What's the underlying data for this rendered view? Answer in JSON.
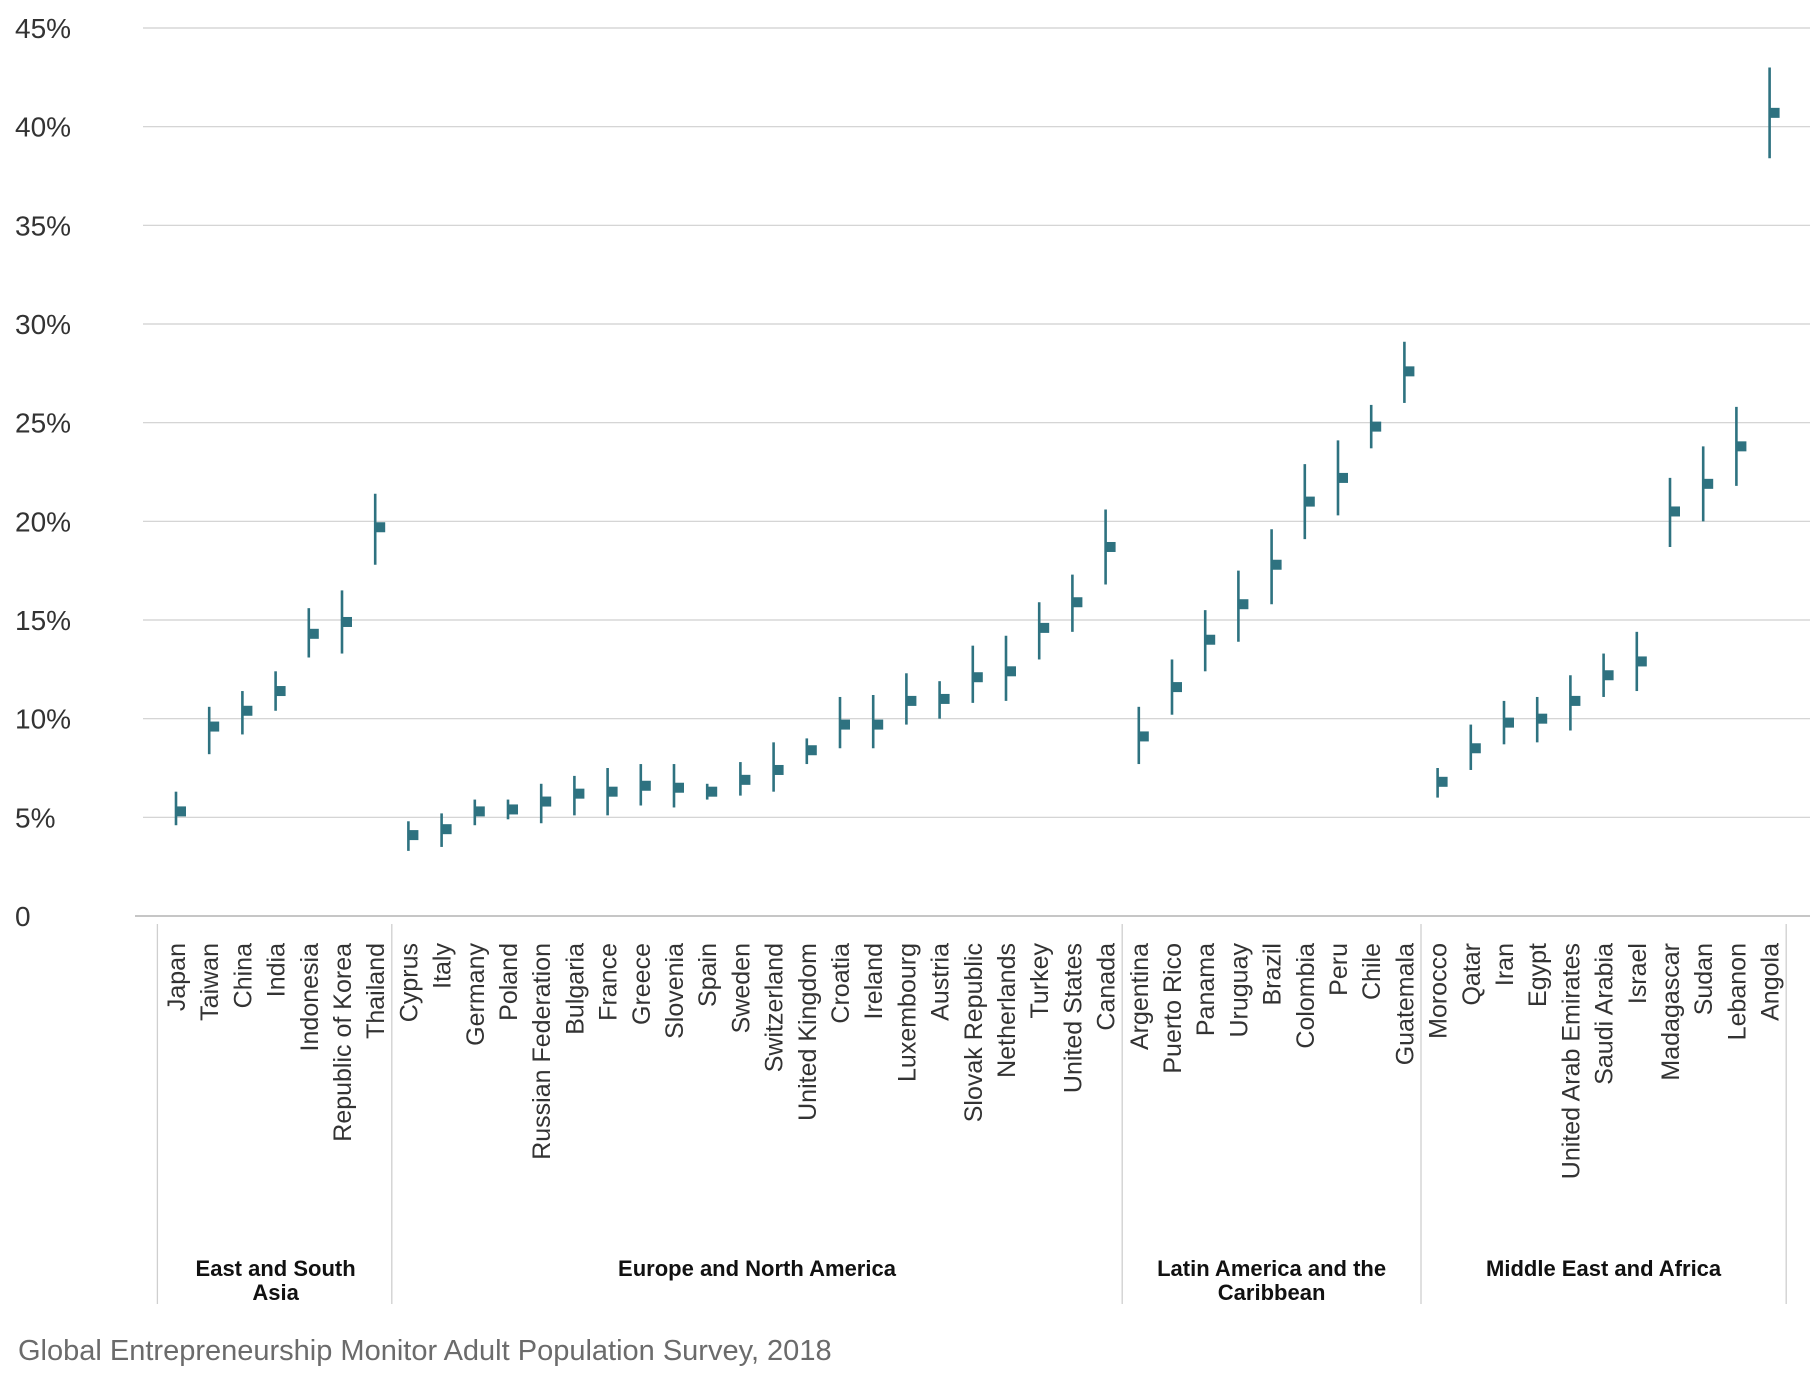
{
  "footer": {
    "source": "Global Entrepreneurship Monitor Adult Population Survey, 2018"
  },
  "colors": {
    "accent": "#2e7280",
    "grid": "#cfcfcf",
    "axis_text": "#333333",
    "group_text": "#111111",
    "source_text": "#6b6b6b"
  },
  "chart_data": {
    "type": "errorbar",
    "title": "",
    "xlabel": "",
    "ylabel": "",
    "ylim": [
      0,
      45
    ],
    "yticks": [
      0,
      5,
      10,
      15,
      20,
      25,
      30,
      35,
      40,
      45
    ],
    "ytick_labels": [
      "0",
      "5%",
      "10%",
      "15%",
      "20%",
      "25%",
      "30%",
      "35%",
      "40%",
      "45%"
    ],
    "grid": "horizontal",
    "groups": [
      {
        "name": "East and South Asia",
        "countries": [
          "Japan",
          "Taiwan",
          "China",
          "India",
          "Indonesia",
          "Republic of Korea",
          "Thailand"
        ],
        "values": [
          5.3,
          9.6,
          10.4,
          11.4,
          14.3,
          14.9,
          19.7
        ],
        "lower": [
          4.6,
          8.2,
          9.2,
          10.4,
          13.1,
          13.3,
          17.8
        ],
        "upper": [
          6.3,
          10.6,
          11.4,
          12.4,
          15.6,
          16.5,
          21.4
        ]
      },
      {
        "name": "Europe and North America",
        "countries": [
          "Cyprus",
          "Italy",
          "Germany",
          "Poland",
          "Russian Federation",
          "Bulgaria",
          "France",
          "Greece",
          "Slovenia",
          "Spain",
          "Sweden",
          "Switzerland",
          "United Kingdom",
          "Croatia",
          "Ireland",
          "Luxembourg",
          "Austria",
          "Slovak Republic",
          "Netherlands",
          "Turkey",
          "United States",
          "Canada"
        ],
        "values": [
          4.1,
          4.4,
          5.3,
          5.4,
          5.8,
          6.2,
          6.3,
          6.6,
          6.5,
          6.3,
          6.9,
          7.4,
          8.4,
          9.7,
          9.7,
          10.9,
          11.0,
          12.1,
          12.4,
          14.6,
          15.9,
          18.7
        ],
        "lower": [
          3.3,
          3.5,
          4.6,
          4.9,
          4.7,
          5.1,
          5.1,
          5.6,
          5.5,
          5.9,
          6.1,
          6.3,
          7.7,
          8.5,
          8.5,
          9.7,
          10.0,
          10.8,
          10.9,
          13.0,
          14.4,
          16.8
        ],
        "upper": [
          4.8,
          5.2,
          5.9,
          5.9,
          6.7,
          7.1,
          7.5,
          7.7,
          7.7,
          6.7,
          7.8,
          8.8,
          9.0,
          11.1,
          11.2,
          12.3,
          11.9,
          13.7,
          14.2,
          15.9,
          17.3,
          20.6
        ]
      },
      {
        "name": "Latin America and the Caribbean",
        "countries": [
          "Argentina",
          "Puerto Rico",
          "Panama",
          "Uruguay",
          "Brazil",
          "Colombia",
          "Peru",
          "Chile",
          "Guatemala"
        ],
        "values": [
          9.1,
          11.6,
          14.0,
          15.8,
          17.8,
          21.0,
          22.2,
          24.8,
          27.6
        ],
        "lower": [
          7.7,
          10.2,
          12.4,
          13.9,
          15.8,
          19.1,
          20.3,
          23.7,
          26.0
        ],
        "upper": [
          10.6,
          13.0,
          15.5,
          17.5,
          19.6,
          22.9,
          24.1,
          25.9,
          29.1
        ]
      },
      {
        "name": "Middle East and Africa",
        "countries": [
          "Morocco",
          "Qatar",
          "Iran",
          "Egypt",
          "United Arab Emirates",
          "Saudi Arabia",
          "Israel",
          "Madagascar",
          "Sudan",
          "Lebanon",
          "Angola"
        ],
        "values": [
          6.8,
          8.5,
          9.8,
          10.0,
          10.9,
          12.2,
          12.9,
          20.5,
          21.9,
          23.8,
          40.7
        ],
        "lower": [
          6.0,
          7.4,
          8.7,
          8.8,
          9.4,
          11.1,
          11.4,
          18.7,
          20.0,
          21.8,
          38.4
        ],
        "upper": [
          7.5,
          9.7,
          10.9,
          11.1,
          12.2,
          13.3,
          14.4,
          22.2,
          23.8,
          25.8,
          43.0
        ]
      }
    ]
  }
}
